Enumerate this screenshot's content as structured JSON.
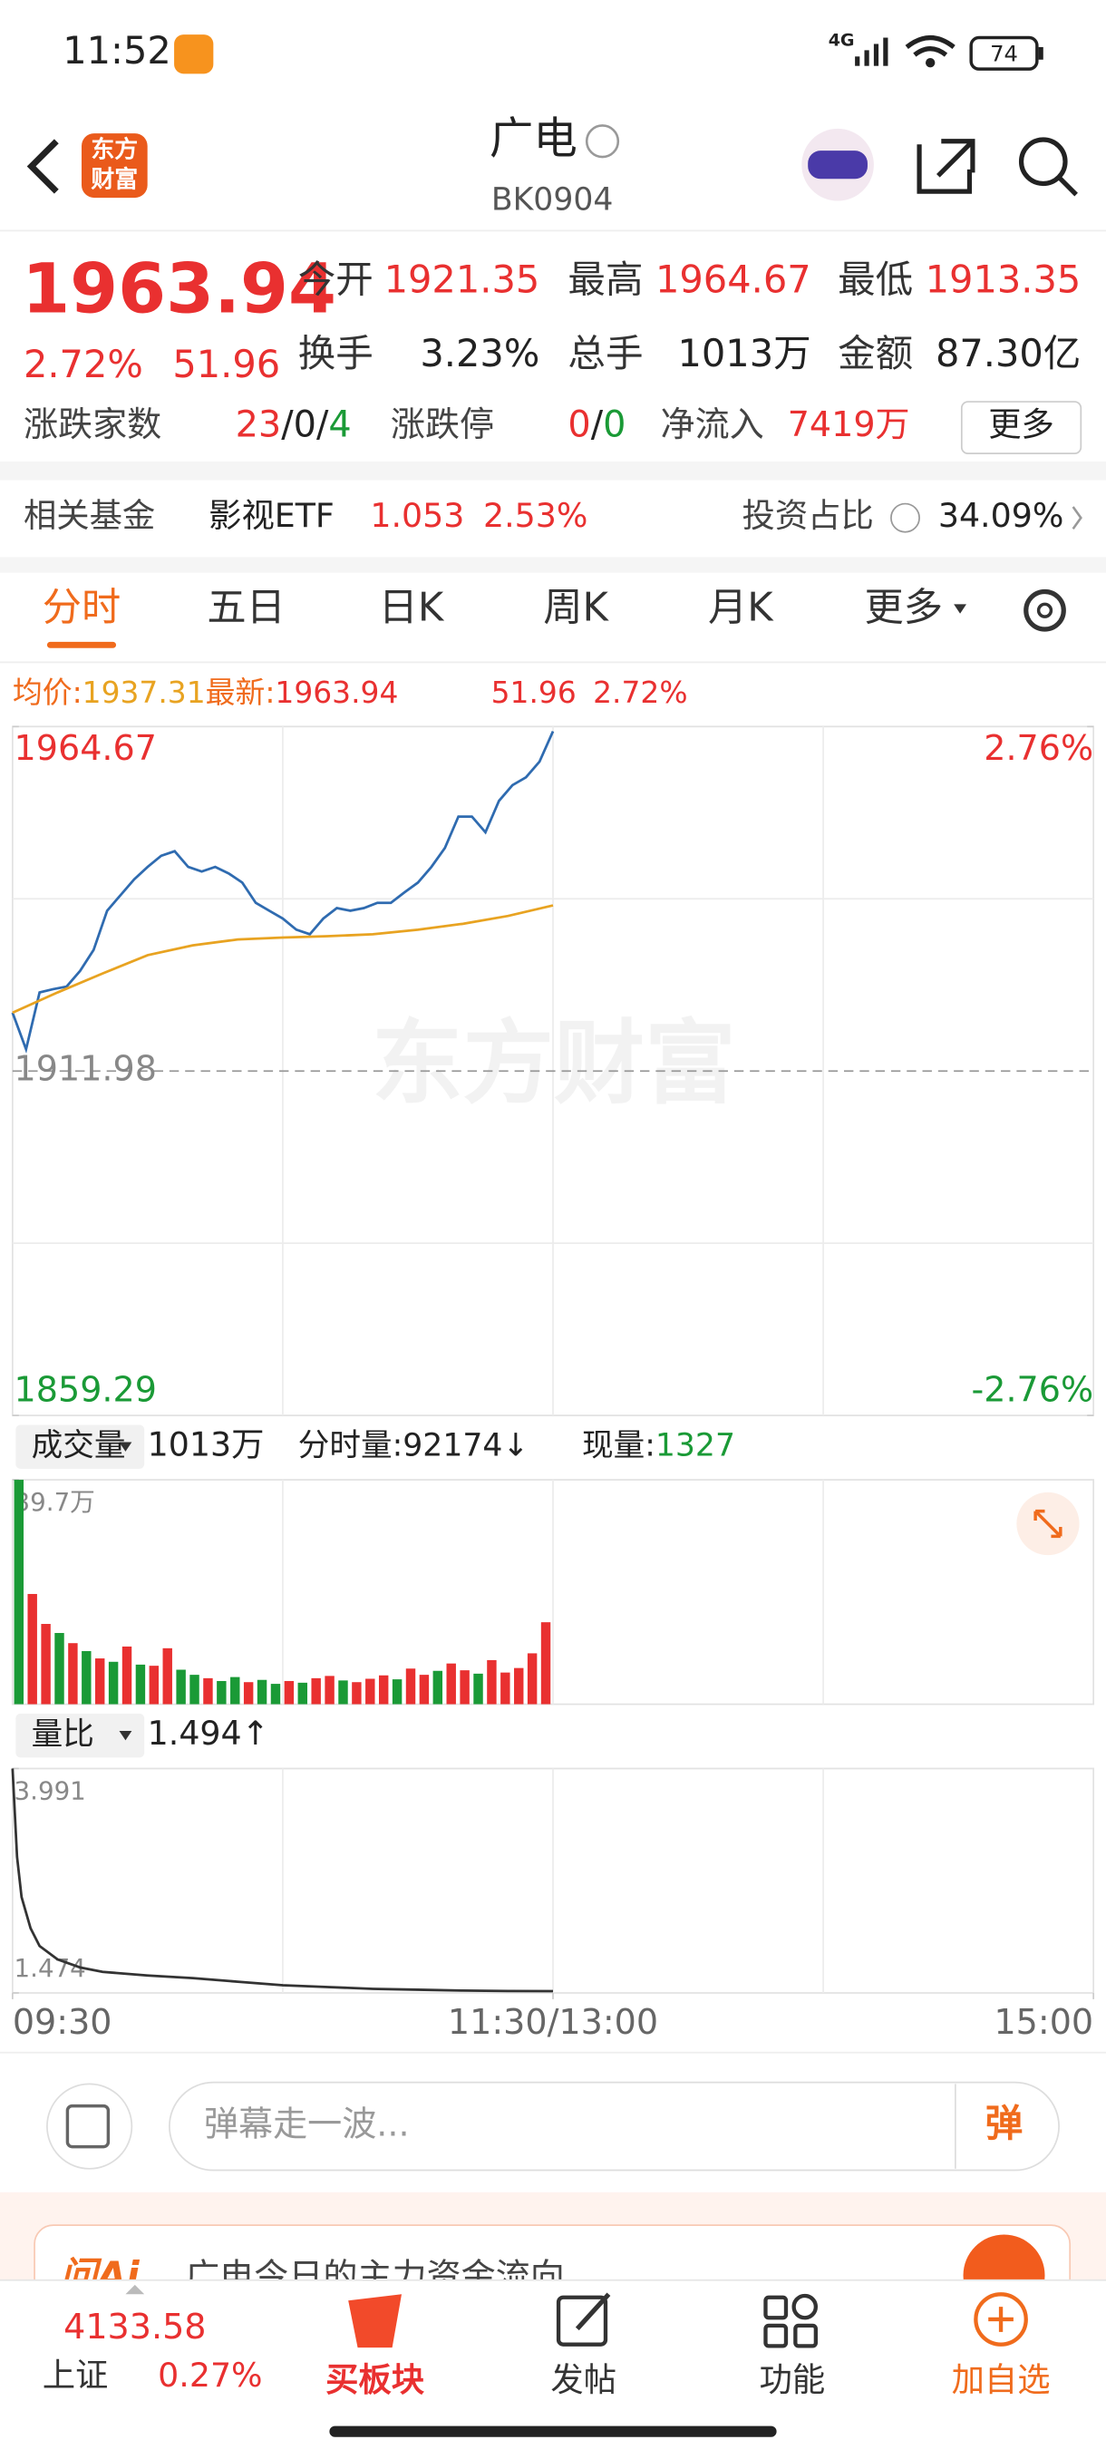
{
  "status_bar": {
    "time": "11:52",
    "network": "4G",
    "battery": "74"
  },
  "header": {
    "logo": [
      "东方",
      "财富"
    ],
    "title": "广电",
    "code": "BK0904"
  },
  "quote": {
    "price": "1963.94",
    "change_pct": "2.72%",
    "change": "51.96",
    "stats": [
      [
        "今开",
        "1921.35"
      ],
      [
        "最高",
        "1964.67"
      ],
      [
        "最低",
        "1913.35"
      ],
      [
        "换手",
        "3.23%"
      ],
      [
        "总手",
        "1013万"
      ],
      [
        "金额",
        "87.30亿"
      ]
    ],
    "breadth_label": "涨跌家数",
    "breadth": [
      "23",
      "0",
      "4"
    ],
    "separator": "/",
    "limit_label": "涨跌停",
    "limit": [
      "0",
      "0"
    ],
    "inflow_label": "净流入",
    "inflow": "7419万",
    "more": "更多"
  },
  "fund": {
    "label": "相关基金",
    "name": "影视ETF",
    "price": "1.053",
    "change_pct": "2.53%",
    "ratio_label": "投资占比",
    "ratio": "34.09%"
  },
  "tabs": [
    "分时",
    "五日",
    "日K",
    "周K",
    "月K",
    "更多"
  ],
  "legend": {
    "avg_label": "均价:",
    "avg": "1937.31",
    "last_label": "最新:",
    "last": "1963.94",
    "change": "51.96",
    "change_pct": "2.72%"
  },
  "watermark": "东方财富",
  "chart_data": [
    {
      "type": "line",
      "ylim": [
        1859.29,
        1964.67
      ],
      "yticks": [
        1859.29,
        1911.98,
        1964.67
      ],
      "y2lim": [
        -2.76,
        2.76
      ],
      "y2ticks": [
        {
          "value": -2.76,
          "label": "-2.76%"
        },
        {
          "value": 2.76,
          "label": "2.76%"
        }
      ],
      "xlim": [
        0,
        240
      ],
      "series": [
        {
          "color": "#2f6bb0",
          "x": [
            0,
            3,
            6,
            9,
            12,
            15,
            18,
            21,
            24,
            27,
            30,
            33,
            36,
            39,
            42,
            45,
            48,
            51,
            54,
            57,
            60,
            63,
            66,
            69,
            72,
            75,
            78,
            81,
            84,
            87,
            90,
            93,
            96,
            99,
            102,
            105,
            108,
            111,
            114,
            117,
            120
          ],
          "values": [
            1920.9,
            1915.3,
            1924.0,
            1924.5,
            1924.9,
            1927.3,
            1930.5,
            1936.5,
            1938.9,
            1941.3,
            1943.2,
            1944.9,
            1945.6,
            1943.2,
            1942.5,
            1943.2,
            1942.2,
            1940.8,
            1937.7,
            1936.5,
            1935.3,
            1933.6,
            1932.9,
            1935.3,
            1936.9,
            1936.5,
            1936.9,
            1937.7,
            1937.7,
            1939.3,
            1940.8,
            1943.2,
            1946.1,
            1950.9,
            1950.9,
            1948.5,
            1953.3,
            1955.7,
            1956.9,
            1959.3,
            1963.94
          ]
        },
        {
          "color": "#e8a321",
          "x": [
            0,
            10,
            20,
            30,
            40,
            50,
            60,
            70,
            80,
            90,
            100,
            110,
            120
          ],
          "values": [
            1920.9,
            1924.0,
            1926.9,
            1929.7,
            1931.2,
            1932.1,
            1932.4,
            1932.6,
            1932.9,
            1933.6,
            1934.5,
            1935.7,
            1937.31
          ]
        }
      ]
    },
    {
      "type": "bar",
      "title": "成交量",
      "total": "1013万",
      "minute_label": "分时量:",
      "minute": "92174",
      "minute_arrow": "↓",
      "now_label": "现量:",
      "now": "1327",
      "ylim": [
        0,
        39.7
      ],
      "yticks": [
        {
          "value": 39.7,
          "label": "39.7万"
        }
      ],
      "xlim": [
        0,
        240
      ],
      "x": [
        0,
        3,
        6,
        9,
        12,
        15,
        18,
        21,
        24,
        27,
        30,
        33,
        36,
        39,
        42,
        45,
        48,
        51,
        54,
        57,
        60,
        63,
        66,
        69,
        72,
        75,
        78,
        81,
        84,
        87,
        90,
        93,
        96,
        99,
        102,
        105,
        108,
        111,
        114,
        117
      ],
      "values": [
        39.7,
        19.5,
        14.2,
        12.6,
        10.8,
        9.4,
        8.1,
        7.5,
        10.2,
        7.0,
        6.8,
        9.9,
        6.1,
        5.2,
        4.6,
        4.1,
        4.8,
        3.9,
        4.3,
        3.6,
        4.1,
        3.8,
        4.6,
        5.0,
        4.2,
        3.9,
        4.5,
        5.1,
        4.4,
        6.3,
        5.2,
        5.9,
        7.2,
        6.0,
        5.4,
        7.8,
        5.6,
        6.4,
        9.0,
        14.5
      ],
      "colors": [
        "#1a9a36",
        "#e93030",
        "#e93030",
        "#1a9a36",
        "#e93030",
        "#1a9a36",
        "#e93030",
        "#1a9a36",
        "#e93030",
        "#1a9a36",
        "#e93030",
        "#e93030",
        "#1a9a36",
        "#1a9a36",
        "#e93030",
        "#1a9a36",
        "#1a9a36",
        "#e93030",
        "#1a9a36",
        "#1a9a36",
        "#e93030",
        "#1a9a36",
        "#e93030",
        "#e93030",
        "#1a9a36",
        "#e93030",
        "#e93030",
        "#e93030",
        "#1a9a36",
        "#e93030",
        "#e93030",
        "#1a9a36",
        "#e93030",
        "#e93030",
        "#1a9a36",
        "#e93030",
        "#e93030",
        "#e93030",
        "#e93030",
        "#e93030"
      ]
    },
    {
      "type": "line",
      "title": "量比",
      "current": "1.494",
      "arrow": "↑",
      "ylim": [
        1.474,
        3.991
      ],
      "yticks": [
        1.474,
        3.991
      ],
      "xlim": [
        0,
        240
      ],
      "xticks": [
        {
          "value": 0,
          "label": "09:30"
        },
        {
          "value": 120,
          "label": "11:30/13:00"
        },
        {
          "value": 240,
          "label": "15:00"
        }
      ],
      "series": [
        {
          "color": "#333333",
          "x": [
            0,
            1,
            2,
            4,
            6,
            10,
            15,
            20,
            30,
            40,
            50,
            60,
            70,
            80,
            90,
            100,
            110,
            120
          ],
          "values": [
            3.991,
            3.0,
            2.55,
            2.2,
            2.0,
            1.85,
            1.76,
            1.71,
            1.67,
            1.64,
            1.6,
            1.56,
            1.54,
            1.52,
            1.51,
            1.5,
            1.495,
            1.494
          ]
        }
      ]
    }
  ],
  "comment": {
    "placeholder": "弹幕走一波...",
    "button": "弹"
  },
  "banner": {
    "badge": "问Ai",
    "text": "广电今日的主力资金流向"
  },
  "nav": {
    "index_price": "4133.58",
    "index_name": "上证",
    "index_change": "0.27%",
    "items": [
      "买板块",
      "发帖",
      "功能",
      "加自选"
    ]
  }
}
